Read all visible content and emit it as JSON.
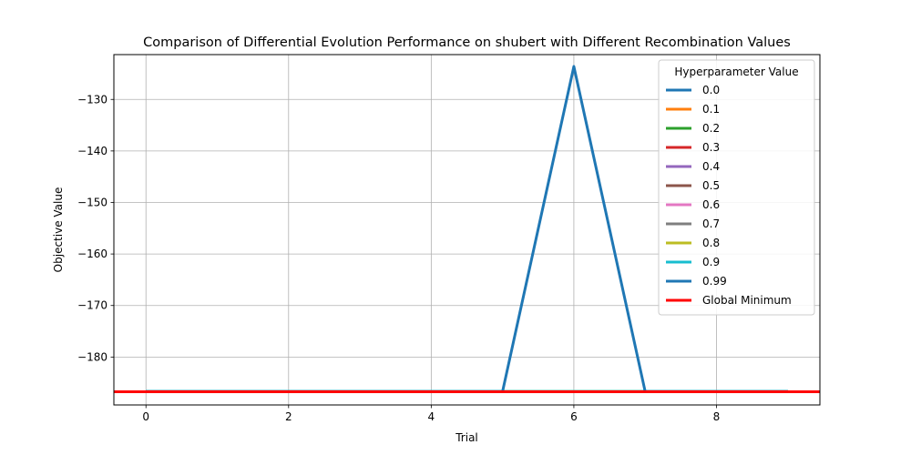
{
  "chart_data": {
    "type": "line",
    "title": "Comparison of Differential Evolution Performance on shubert with Different Recombination Values",
    "xlabel": "Trial",
    "ylabel": "Objective Value",
    "xlim": [
      -0.45,
      9.45
    ],
    "ylim": [
      -189.3,
      -121.3
    ],
    "xticks": [
      0,
      2,
      4,
      6,
      8
    ],
    "yticks": [
      -180,
      -170,
      -160,
      -150,
      -140,
      -130
    ],
    "grid": true,
    "legend": {
      "title": "Hyperparameter Value",
      "placement": "top-right"
    },
    "x": [
      0,
      1,
      2,
      3,
      4,
      5,
      6,
      7,
      8,
      9
    ],
    "series": [
      {
        "name": "0.0",
        "color": "#1f77b4",
        "values": [
          -186.7,
          -186.7,
          -186.7,
          -186.7,
          -186.7,
          -186.7,
          -186.7,
          -186.7,
          -186.7,
          -186.7
        ]
      },
      {
        "name": "0.1",
        "color": "#ff7f0e",
        "values": [
          -186.7,
          -186.7,
          -186.7,
          -186.7,
          -186.7,
          -186.7,
          -186.7,
          -186.7,
          -186.7,
          -186.7
        ]
      },
      {
        "name": "0.2",
        "color": "#2ca02c",
        "values": [
          -186.7,
          -186.7,
          -186.7,
          -186.7,
          -186.7,
          -186.7,
          -186.7,
          -186.7,
          -186.7,
          -186.7
        ]
      },
      {
        "name": "0.3",
        "color": "#d62728",
        "values": [
          -186.7,
          -186.7,
          -186.7,
          -186.7,
          -186.7,
          -186.7,
          -186.7,
          -186.7,
          -186.7,
          -186.7
        ]
      },
      {
        "name": "0.4",
        "color": "#9467bd",
        "values": [
          -186.7,
          -186.7,
          -186.7,
          -186.7,
          -186.7,
          -186.7,
          -186.7,
          -186.7,
          -186.7,
          -186.7
        ]
      },
      {
        "name": "0.5",
        "color": "#8c564b",
        "values": [
          -186.7,
          -186.7,
          -186.7,
          -186.7,
          -186.7,
          -186.7,
          -186.7,
          -186.7,
          -186.7,
          -186.7
        ]
      },
      {
        "name": "0.6",
        "color": "#e377c2",
        "values": [
          -186.7,
          -186.7,
          -186.7,
          -186.7,
          -186.7,
          -186.7,
          -186.7,
          -186.7,
          -186.7,
          -186.7
        ]
      },
      {
        "name": "0.7",
        "color": "#7f7f7f",
        "values": [
          -186.7,
          -186.7,
          -186.7,
          -186.7,
          -186.7,
          -186.7,
          -186.7,
          -186.7,
          -186.7,
          -186.7
        ]
      },
      {
        "name": "0.8",
        "color": "#bcbd22",
        "values": [
          -186.7,
          -186.7,
          -186.7,
          -186.7,
          -186.7,
          -186.7,
          -186.7,
          -186.7,
          -186.7,
          -186.7
        ]
      },
      {
        "name": "0.9",
        "color": "#17becf",
        "values": [
          -186.7,
          -186.7,
          -186.7,
          -186.7,
          -186.7,
          -186.7,
          -186.7,
          -186.7,
          -186.7,
          -186.7
        ]
      },
      {
        "name": "0.99",
        "color": "#1f77b4",
        "values": [
          -186.7,
          -186.7,
          -186.7,
          -186.7,
          -186.7,
          -186.7,
          -123.6,
          -186.7,
          -186.7,
          -186.7
        ]
      }
    ],
    "reference_line": {
      "name": "Global Minimum",
      "color": "#ff0000",
      "y": -186.7309
    }
  }
}
